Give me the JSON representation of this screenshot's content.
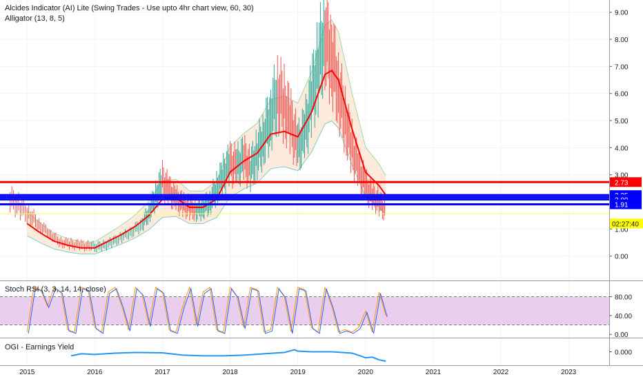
{
  "indicators": {
    "main_title": "Alcides Indicator (AI) Lite (Swing Trades - Use upto 4hr chart view, 60, 30)",
    "alligator": "Alligator (13, 8, 5)",
    "stoch_title": "Stoch RSI (3, 3, 14, 14, close)",
    "yield_title": "OGI - Earnings Yield"
  },
  "colors": {
    "red_line": "#ff0000",
    "blue_line": "#0000ff",
    "yellow_line": "#ffff66",
    "price_tag_bg": "#ffff00",
    "stoch_band": "#e1bee7",
    "candle_up": "#26a69a",
    "candle_down": "#ef5350",
    "yield_line": "#2196f3"
  },
  "chart_data": [
    {
      "type": "line",
      "panel": "price",
      "x_ticks": [
        "2015",
        "2016",
        "2017",
        "2018",
        "2019",
        "2020",
        "2021",
        "2022",
        "2023"
      ],
      "x_range": [
        2014.6,
        2023.6
      ],
      "y_ticks": [
        "0.00",
        "1.00",
        "2.00",
        "3.00",
        "4.00",
        "5.00",
        "6.00",
        "7.00",
        "8.00",
        "9.00"
      ],
      "ylim": [
        -0.9,
        9.45
      ],
      "series": [
        {
          "style": "price-high-low",
          "x": [
            2014.75,
            2014.9,
            2015.05,
            2015.2,
            2015.35,
            2015.5,
            2015.65,
            2015.8,
            2015.95,
            2016.1,
            2016.25,
            2016.4,
            2016.55,
            2016.7,
            2016.8,
            2016.9,
            2017.0,
            2017.1,
            2017.2,
            2017.3,
            2017.4,
            2017.5,
            2017.6,
            2017.7,
            2017.8,
            2017.9,
            2018.0,
            2018.1,
            2018.2,
            2018.3,
            2018.4,
            2018.5,
            2018.6,
            2018.7,
            2018.8,
            2018.9,
            2019.0,
            2019.1,
            2019.2,
            2019.3,
            2019.4,
            2019.5,
            2019.6,
            2019.7,
            2019.8,
            2019.9,
            2020.0,
            2020.1,
            2020.2,
            2020.3
          ],
          "values": [
            2.1,
            1.8,
            1.5,
            1.1,
            0.8,
            0.5,
            0.45,
            0.4,
            0.35,
            0.35,
            0.5,
            0.7,
            0.9,
            1.2,
            1.6,
            2.2,
            2.8,
            2.4,
            2.1,
            1.9,
            1.8,
            1.7,
            1.8,
            2.0,
            2.5,
            3.0,
            3.4,
            3.3,
            3.6,
            3.2,
            3.8,
            4.4,
            5.2,
            6.0,
            5.6,
            4.9,
            4.0,
            4.5,
            5.8,
            7.0,
            8.2,
            7.4,
            6.2,
            5.0,
            4.0,
            3.2,
            2.6,
            2.2,
            2.0,
            1.6
          ]
        },
        {
          "style": "smoothed-red",
          "x": [
            2015.0,
            2015.2,
            2015.4,
            2015.6,
            2015.8,
            2016.0,
            2016.2,
            2016.4,
            2016.6,
            2016.8,
            2017.0,
            2017.2,
            2017.4,
            2017.6,
            2017.8,
            2018.0,
            2018.2,
            2018.4,
            2018.6,
            2018.8,
            2019.0,
            2019.2,
            2019.4,
            2019.5,
            2019.6,
            2019.8,
            2020.0,
            2020.2,
            2020.3
          ],
          "values": [
            1.2,
            0.85,
            0.55,
            0.4,
            0.3,
            0.3,
            0.55,
            0.8,
            1.1,
            1.5,
            2.1,
            2.15,
            1.8,
            1.8,
            2.1,
            3.1,
            3.5,
            3.8,
            4.5,
            4.6,
            4.4,
            5.3,
            6.7,
            6.85,
            6.5,
            4.7,
            3.1,
            2.6,
            2.25
          ]
        }
      ],
      "levels": [
        {
          "value": 2.73,
          "label": "2.73",
          "color": "#ff0000"
        },
        {
          "value": 2.25,
          "label": "2.25",
          "color": "#0000ff"
        },
        {
          "value": 2.17,
          "label": "",
          "color": "#0000ff"
        },
        {
          "value": 2.09,
          "label": "2.09",
          "color": "#0000ff"
        },
        {
          "value": 1.91,
          "label": "1.91",
          "color": "#0000ff"
        },
        {
          "value": 1.56,
          "label": "",
          "color": "#ffff66"
        }
      ],
      "countdown": "02:27:40"
    },
    {
      "type": "line",
      "panel": "stoch",
      "y_ticks": [
        "80.00",
        "40.00",
        "0.00"
      ],
      "band": [
        20,
        80
      ],
      "ylim": [
        -7,
        113
      ],
      "series": [
        {
          "x": [
            2015.0,
            2015.1,
            2015.2,
            2015.3,
            2015.4,
            2015.5,
            2015.6,
            2015.7,
            2015.8,
            2015.9,
            2016.0,
            2016.1,
            2016.2,
            2016.3,
            2016.4,
            2016.5,
            2016.6,
            2016.7,
            2016.8,
            2016.9,
            2017.0,
            2017.1,
            2017.2,
            2017.3,
            2017.4,
            2017.5,
            2017.6,
            2017.7,
            2017.8,
            2017.9,
            2018.0,
            2018.1,
            2018.2,
            2018.3,
            2018.4,
            2018.5,
            2018.6,
            2018.7,
            2018.8,
            2018.9,
            2019.0,
            2019.1,
            2019.2,
            2019.3,
            2019.4,
            2019.5,
            2019.6,
            2019.7,
            2019.8,
            2019.9,
            2020.0,
            2020.1,
            2020.2,
            2020.3
          ],
          "values": [
            5,
            100,
            95,
            60,
            100,
            90,
            10,
            5,
            100,
            95,
            15,
            5,
            90,
            100,
            60,
            10,
            100,
            85,
            20,
            100,
            90,
            10,
            5,
            60,
            100,
            20,
            90,
            100,
            10,
            5,
            100,
            80,
            15,
            100,
            95,
            5,
            10,
            100,
            80,
            5,
            100,
            95,
            15,
            5,
            100,
            60,
            5,
            10,
            5,
            15,
            50,
            5,
            90,
            40
          ]
        }
      ]
    },
    {
      "type": "line",
      "panel": "earnings-yield",
      "y_ticks": [
        "0.000"
      ],
      "ylim": [
        -1,
        1
      ],
      "series": [
        {
          "x": [
            2015.65,
            2015.8,
            2016.0,
            2016.3,
            2016.6,
            2017.0,
            2017.3,
            2017.6,
            2017.9,
            2018.2,
            2018.5,
            2018.8,
            2018.95,
            2019.0,
            2019.2,
            2019.5,
            2019.8,
            2019.95,
            2020.0,
            2020.1,
            2020.2,
            2020.3
          ],
          "values": [
            -0.3,
            -0.15,
            -0.2,
            -0.1,
            -0.05,
            -0.08,
            -0.25,
            -0.3,
            -0.3,
            -0.25,
            -0.15,
            -0.05,
            0.15,
            0.05,
            0.0,
            0.0,
            -0.1,
            -0.35,
            -0.45,
            -0.4,
            -0.6,
            -0.7
          ]
        }
      ]
    }
  ]
}
